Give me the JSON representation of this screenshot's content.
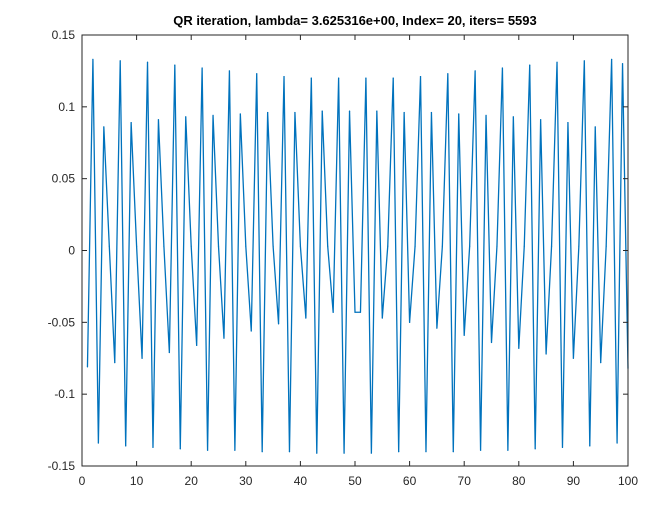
{
  "chart_data": {
    "type": "line",
    "title": "QR iteration, lambda= 3.625316e+00, Index= 20, iters= 5593",
    "xlabel": "",
    "ylabel": "",
    "xlim": [
      0,
      100
    ],
    "ylim": [
      -0.15,
      0.15
    ],
    "xticks": [
      0,
      10,
      20,
      30,
      40,
      50,
      60,
      70,
      80,
      90,
      100
    ],
    "xtick_labels": [
      "0",
      "10",
      "20",
      "30",
      "40",
      "50",
      "60",
      "70",
      "80",
      "90",
      "100"
    ],
    "yticks": [
      0.15,
      0.1,
      0.05,
      0,
      -0.05,
      -0.1,
      -0.15
    ],
    "ytick_labels": [
      "0.15",
      "0.1",
      "0.05",
      "0",
      "-0.05",
      "-0.1",
      "-0.15"
    ],
    "grid": false,
    "line_color": "#0072bd",
    "series": [
      {
        "x": [
          1,
          2,
          3,
          4,
          5,
          6,
          7,
          8,
          9,
          10,
          11,
          12,
          13,
          14,
          15,
          16,
          17,
          18,
          19,
          20,
          21,
          22,
          23,
          24,
          25,
          26,
          27,
          28,
          29,
          30,
          31,
          32,
          33,
          34,
          35,
          36,
          37,
          38,
          39,
          40,
          41,
          42,
          43,
          44,
          45,
          46,
          47,
          48,
          49,
          50,
          51,
          52,
          53,
          54,
          55,
          56,
          57,
          58,
          59,
          60,
          61,
          62,
          63,
          64,
          65,
          66,
          67,
          68,
          69,
          70,
          71,
          72,
          73,
          74,
          75,
          76,
          77,
          78,
          79,
          80,
          81,
          82,
          83,
          84,
          85,
          86,
          87,
          88,
          89,
          90,
          91,
          92,
          93,
          94,
          95,
          96,
          97,
          98,
          99,
          100
        ],
        "y": [
          -0.081,
          0.133,
          -0.134,
          0.086,
          0.003,
          -0.078,
          0.132,
          -0.136,
          0.089,
          0.003,
          -0.075,
          0.131,
          -0.137,
          0.091,
          0.003,
          -0.071,
          0.129,
          -0.138,
          0.093,
          0.003,
          -0.066,
          0.127,
          -0.139,
          0.094,
          0.003,
          -0.061,
          0.125,
          -0.139,
          0.095,
          0.003,
          -0.056,
          0.123,
          -0.14,
          0.096,
          0.003,
          -0.051,
          0.121,
          -0.14,
          0.096,
          0.003,
          -0.047,
          0.12,
          -0.141,
          0.097,
          0.003,
          -0.043,
          0.12,
          -0.141,
          0.097,
          -0.043,
          -0.043,
          0.12,
          -0.141,
          0.097,
          -0.047,
          0.003,
          0.12,
          -0.14,
          0.096,
          -0.05,
          0.003,
          0.121,
          -0.14,
          0.096,
          -0.054,
          0.003,
          0.123,
          -0.14,
          0.095,
          -0.059,
          0.003,
          0.125,
          -0.139,
          0.094,
          -0.064,
          0.003,
          0.127,
          -0.139,
          0.093,
          -0.068,
          0.003,
          0.129,
          -0.138,
          0.091,
          -0.072,
          0.003,
          0.131,
          -0.137,
          0.089,
          -0.075,
          0.003,
          0.132,
          -0.136,
          0.086,
          -0.078,
          0.003,
          0.133,
          -0.134,
          0.13,
          -0.082
        ]
      }
    ]
  }
}
